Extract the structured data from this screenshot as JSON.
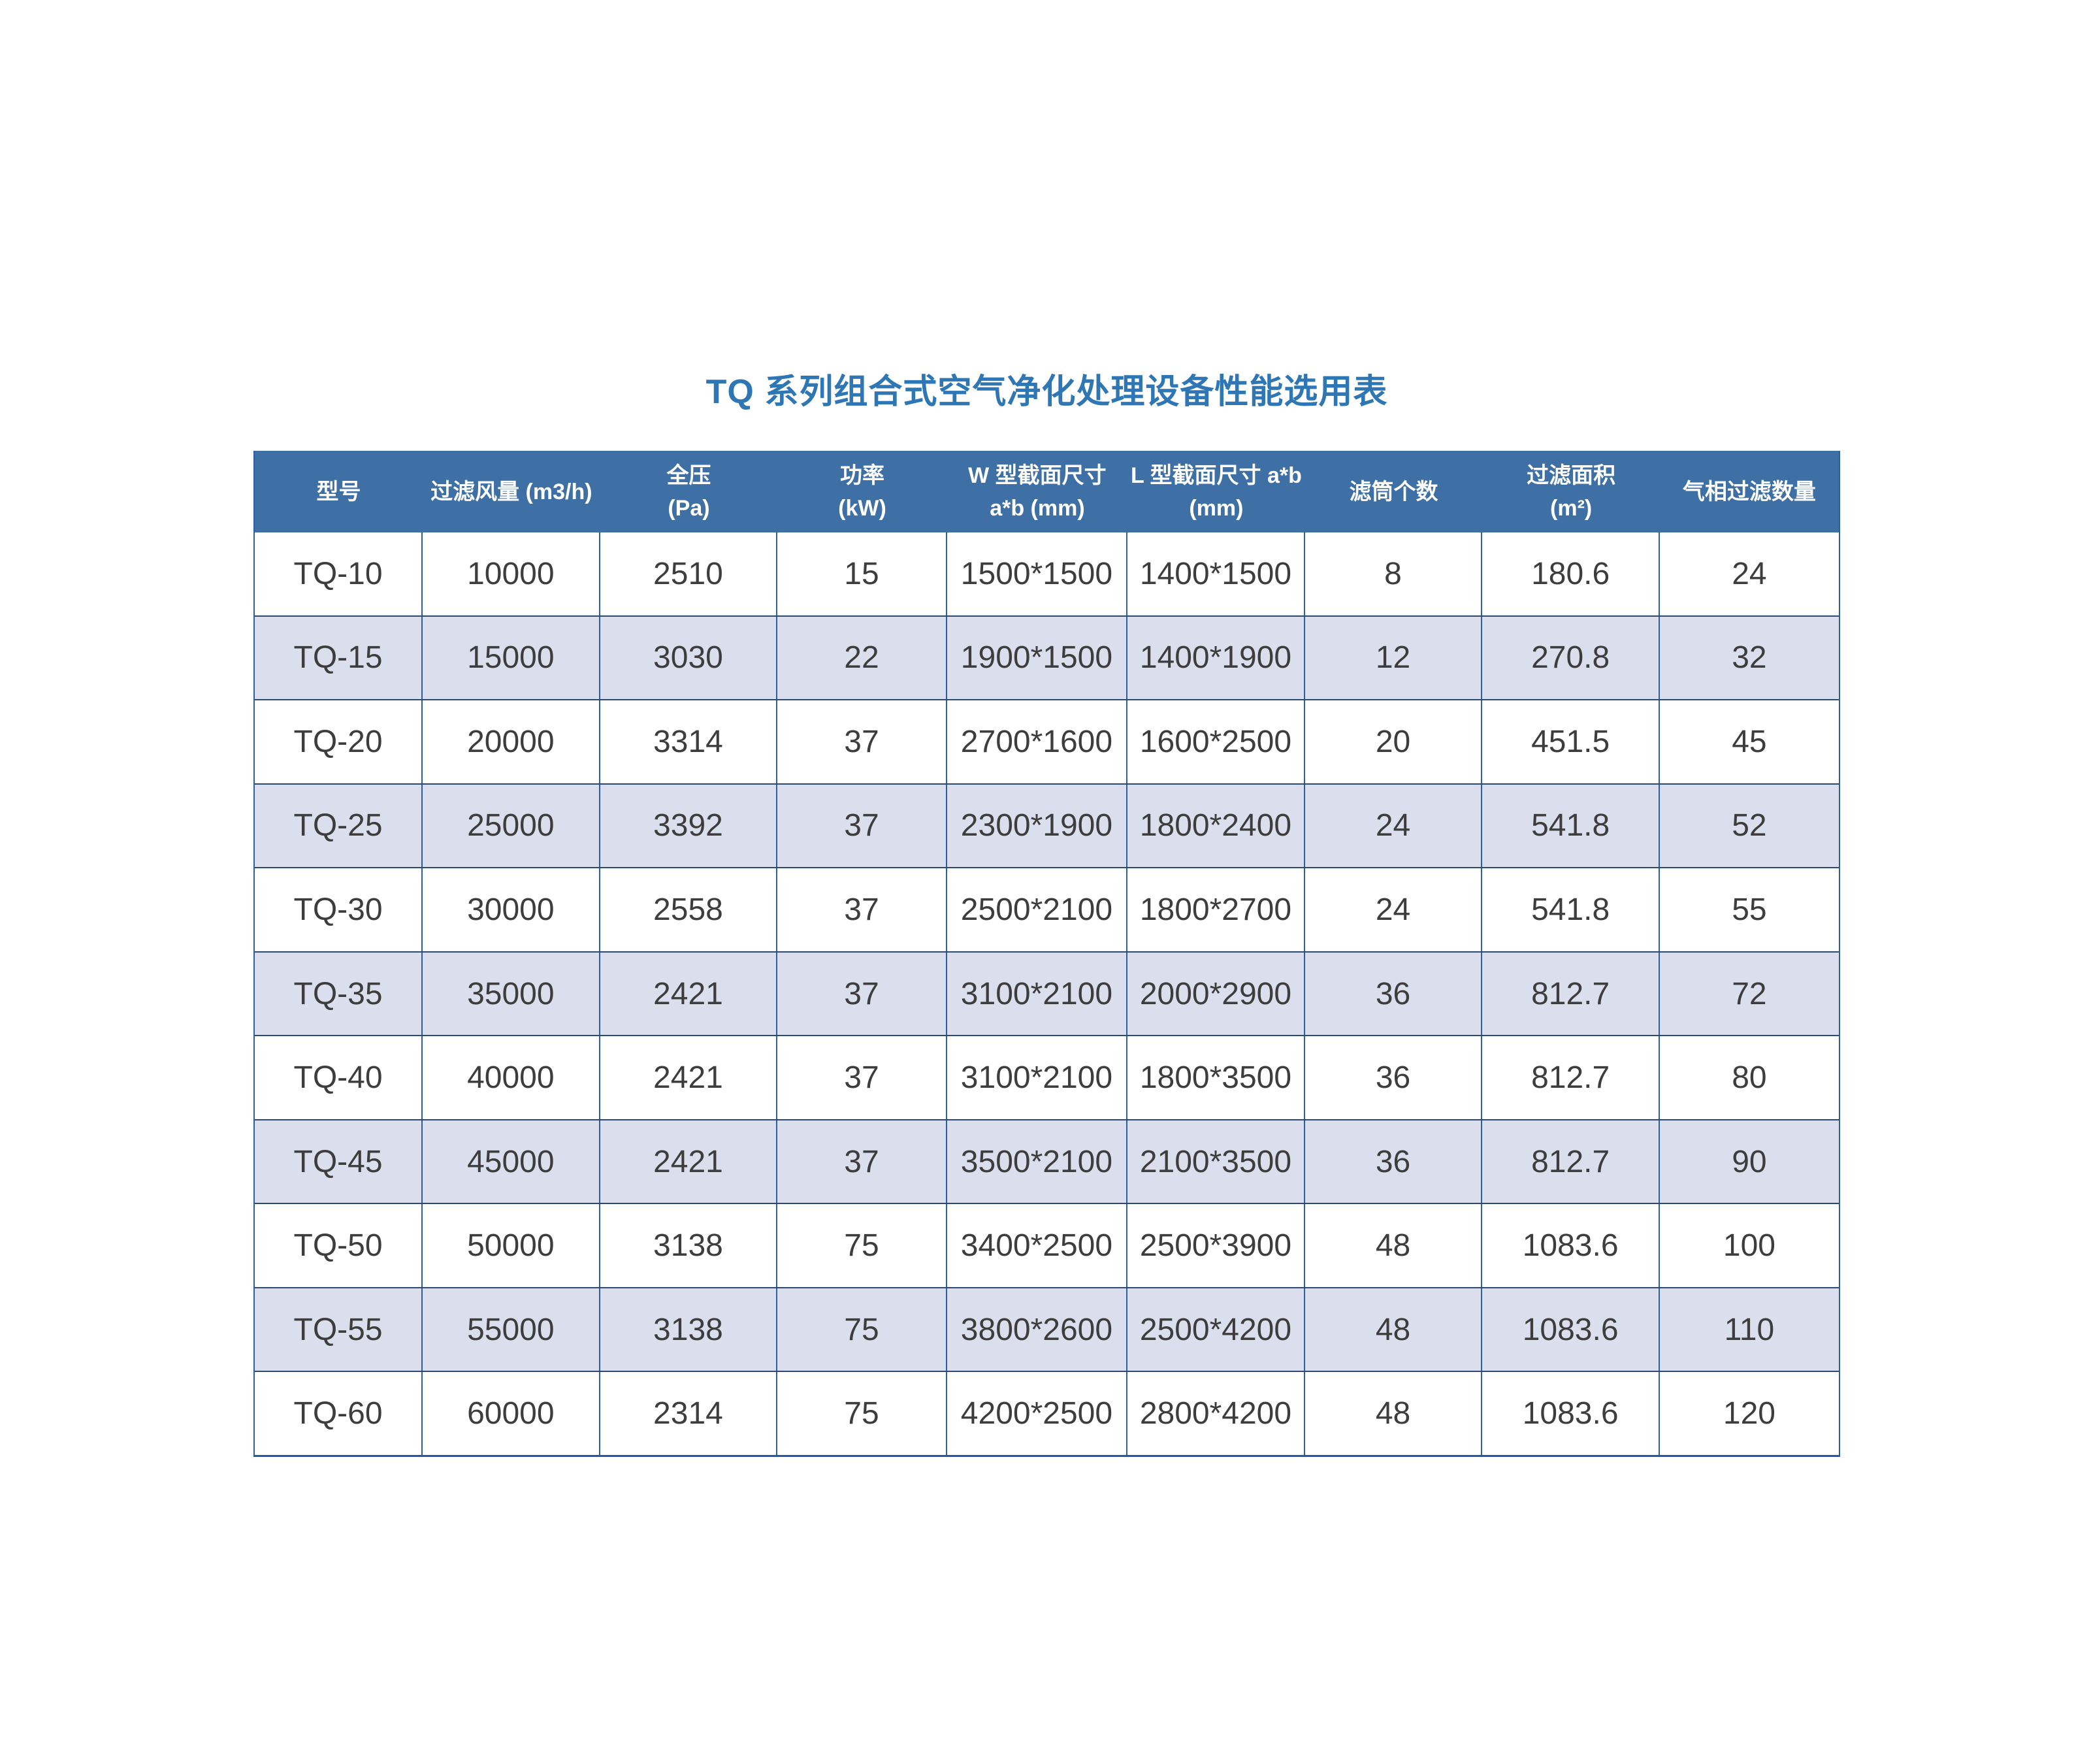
{
  "page": {
    "title": "TQ 系列组合式空气净化处理设备性能选用表"
  },
  "colors": {
    "title_color": "#2e76b4",
    "header_bg": "#3e6fa5",
    "header_text": "#ffffff",
    "alt_row_bg": "#dbdeec",
    "text_color": "#3d3d3d",
    "grid_vertical": "#2d5fa6",
    "grid_horizontal": "#2b4a70",
    "bottom_line": "#2456a8"
  },
  "table": {
    "columns": [
      {
        "id": "model",
        "label_lines": [
          "型号"
        ]
      },
      {
        "id": "airflow",
        "label_lines": [
          "过滤风量 (m3/h)"
        ]
      },
      {
        "id": "pressure",
        "label_lines": [
          "全压",
          "(Pa)"
        ]
      },
      {
        "id": "power",
        "label_lines": [
          "功率",
          "(kW)"
        ]
      },
      {
        "id": "w-section",
        "label_lines": [
          "W 型截面尺寸",
          "a*b (mm)"
        ]
      },
      {
        "id": "l-section",
        "label_lines": [
          "L 型截面尺寸 a*b",
          "(mm)"
        ]
      },
      {
        "id": "cartridges",
        "label_lines": [
          "滤筒个数"
        ]
      },
      {
        "id": "filter-area",
        "label_lines": [
          "过滤面积",
          "(m²)"
        ]
      },
      {
        "id": "gas-filters",
        "label_lines": [
          "气相过滤数量"
        ]
      }
    ],
    "rows": [
      [
        "TQ-10",
        "10000",
        "2510",
        "15",
        "1500*1500",
        "1400*1500",
        "8",
        "180.6",
        "24"
      ],
      [
        "TQ-15",
        "15000",
        "3030",
        "22",
        "1900*1500",
        "1400*1900",
        "12",
        "270.8",
        "32"
      ],
      [
        "TQ-20",
        "20000",
        "3314",
        "37",
        "2700*1600",
        "1600*2500",
        "20",
        "451.5",
        "45"
      ],
      [
        "TQ-25",
        "25000",
        "3392",
        "37",
        "2300*1900",
        "1800*2400",
        "24",
        "541.8",
        "52"
      ],
      [
        "TQ-30",
        "30000",
        "2558",
        "37",
        "2500*2100",
        "1800*2700",
        "24",
        "541.8",
        "55"
      ],
      [
        "TQ-35",
        "35000",
        "2421",
        "37",
        "3100*2100",
        "2000*2900",
        "36",
        "812.7",
        "72"
      ],
      [
        "TQ-40",
        "40000",
        "2421",
        "37",
        "3100*2100",
        "1800*3500",
        "36",
        "812.7",
        "80"
      ],
      [
        "TQ-45",
        "45000",
        "2421",
        "37",
        "3500*2100",
        "2100*3500",
        "36",
        "812.7",
        "90"
      ],
      [
        "TQ-50",
        "50000",
        "3138",
        "75",
        "3400*2500",
        "2500*3900",
        "48",
        "1083.6",
        "100"
      ],
      [
        "TQ-55",
        "55000",
        "3138",
        "75",
        "3800*2600",
        "2500*4200",
        "48",
        "1083.6",
        "110"
      ],
      [
        "TQ-60",
        "60000",
        "2314",
        "75",
        "4200*2500",
        "2800*4200",
        "48",
        "1083.6",
        "120"
      ]
    ]
  }
}
